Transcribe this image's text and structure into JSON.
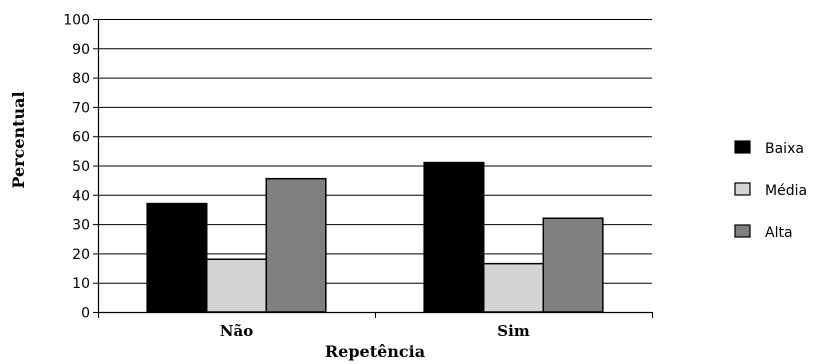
{
  "chart_data": {
    "type": "bar",
    "title": "",
    "xlabel": "Repetência",
    "ylabel": "Percentual",
    "categories": [
      "Não",
      "Sim"
    ],
    "yticks": [
      "0",
      "10",
      "20",
      "30",
      "40",
      "50",
      "60",
      "70",
      "80",
      "90",
      "100"
    ],
    "ylim": [
      0,
      100
    ],
    "grid": true,
    "legend_position": "right",
    "series": [
      {
        "name": "Baixa",
        "color": "#000000",
        "values": [
          37,
          51
        ]
      },
      {
        "name": "Média",
        "color": "#d4d4d6",
        "values": [
          18,
          16.5
        ]
      },
      {
        "name": "Alta",
        "color": "#808083",
        "values": [
          45.5,
          32
        ]
      }
    ]
  }
}
